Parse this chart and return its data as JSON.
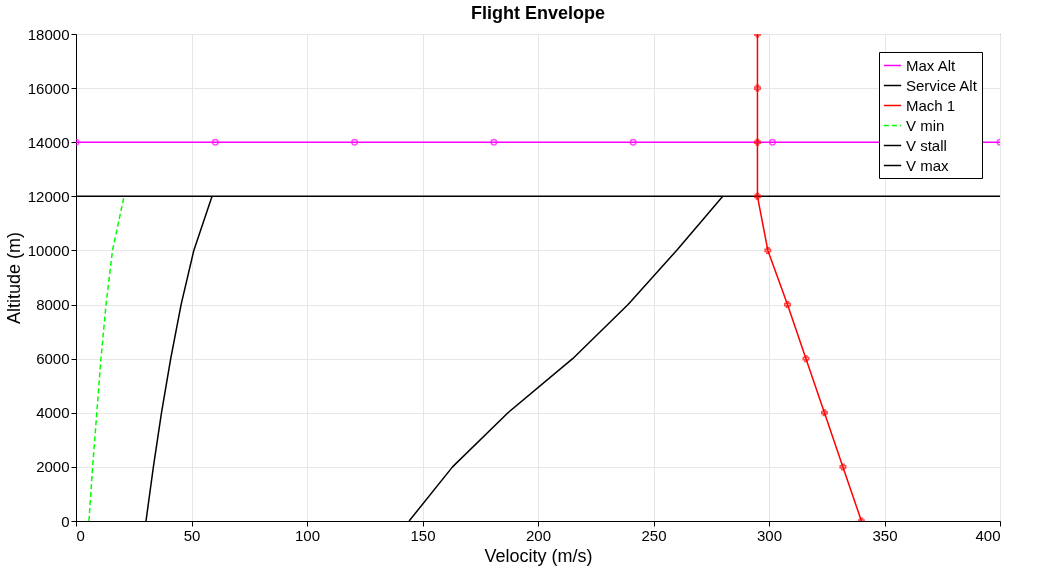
{
  "chart_data": {
    "type": "line",
    "title": "Flight Envelope",
    "xlabel": "Velocity (m/s)",
    "ylabel": "Altitude (m)",
    "xlim": [
      0,
      400
    ],
    "xticks": [
      0,
      50,
      100,
      150,
      200,
      250,
      300,
      350,
      400
    ],
    "ylim": [
      0,
      18000
    ],
    "yticks": [
      0,
      2000,
      4000,
      6000,
      8000,
      10000,
      12000,
      14000,
      16000,
      18000
    ],
    "grid": true,
    "legend": "top right",
    "series": [
      {
        "name": "Max Alt",
        "color": "#ff00ff",
        "marker": "circle",
        "line_style": "solid",
        "x": [
          0,
          60.3,
          120.6,
          180.9,
          241.2,
          301.5,
          400
        ],
        "values": [
          14000,
          14000,
          14000,
          14000,
          14000,
          14000,
          14000
        ]
      },
      {
        "name": "Service Alt",
        "color": "#000000",
        "marker": "none",
        "line_style": "solid",
        "x": [
          0,
          400
        ],
        "values": [
          12000,
          12000
        ]
      },
      {
        "name": "Mach 1",
        "color": "#ff0000",
        "marker": "cross",
        "line_style": "solid",
        "x": [
          295,
          295,
          295,
          295,
          299.5,
          308,
          316,
          324,
          332,
          340
        ],
        "values": [
          18000,
          16000,
          14000,
          12000,
          10000,
          8000,
          6000,
          4000,
          2000,
          0
        ]
      },
      {
        "name": "V min",
        "color": "#00ff00",
        "marker": "none",
        "line_style": "dashed",
        "x": [
          5.6,
          7.2,
          9,
          10.8,
          13,
          15.8,
          20.8
        ],
        "values": [
          0,
          2000,
          4000,
          6000,
          8000,
          10000,
          12000
        ]
      },
      {
        "name": "V stall",
        "color": "#000000",
        "marker": "none",
        "line_style": "solid",
        "x": [
          30.3,
          33.5,
          37,
          41,
          45.5,
          51,
          58.9
        ],
        "values": [
          0,
          2000,
          4000,
          6000,
          8000,
          10000,
          12000
        ]
      },
      {
        "name": "V max",
        "color": "#000000",
        "marker": "none",
        "line_style": "solid",
        "x": [
          144.2,
          163,
          187,
          215,
          239,
          260,
          280
        ],
        "values": [
          0,
          2000,
          4000,
          6000,
          8000,
          10000,
          12000
        ]
      }
    ]
  }
}
